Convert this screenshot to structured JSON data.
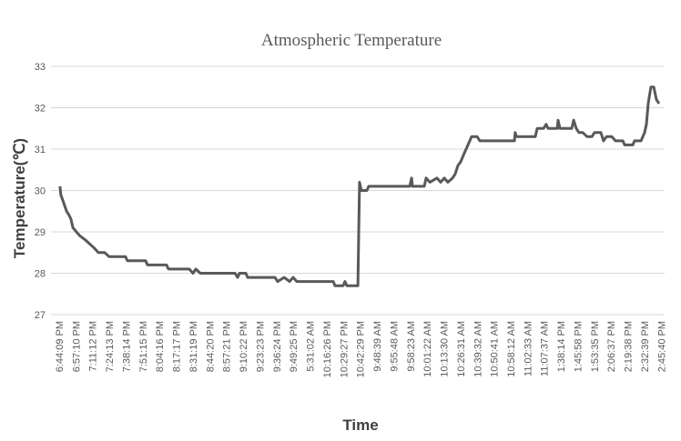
{
  "chart_data": {
    "type": "line",
    "title": "Atmospheric Temperature",
    "xlabel": "Time",
    "ylabel": "Temperature(℃)",
    "ylim": [
      27,
      33
    ],
    "yticks": [
      27,
      28,
      29,
      30,
      31,
      32,
      33
    ],
    "grid": true,
    "legend": "none",
    "series_color": "#595959",
    "categories": [
      "6:44:09 PM",
      "6:57:10 PM",
      "7:11:12 PM",
      "7:24:13 PM",
      "7:38:14 PM",
      "7:51:15 PM",
      "8:04:16 PM",
      "8:17:17 PM",
      "8:31:19 PM",
      "8:44:20 PM",
      "8:57:21 PM",
      "9:10:22 PM",
      "9:23:23 PM",
      "9:36:24 PM",
      "9:49:25 PM",
      "5:31:02 AM",
      "10:16:26 PM",
      "10:29:27 PM",
      "10:42:29 PM",
      "9:48:39 AM",
      "9:55:48 AM",
      "9:58:23 AM",
      "10:01:22 AM",
      "10:13:30 AM",
      "10:26:31 AM",
      "10:39:32 AM",
      "10:50:41 AM",
      "10:58:12 AM",
      "11:02:33 AM",
      "11:07:37 AM",
      "1:38:14 PM",
      "1:45:58 PM",
      "1:53:35 PM",
      "2:06:37 PM",
      "2:19:38 PM",
      "2:32:39 PM",
      "2:45:40 PM"
    ],
    "series": [
      {
        "name": "Temperature",
        "points": [
          [
            0.05,
            30.1
          ],
          [
            0.1,
            29.9
          ],
          [
            0.27,
            29.7
          ],
          [
            0.44,
            29.5
          ],
          [
            0.6,
            29.4
          ],
          [
            0.71,
            29.3
          ],
          [
            0.82,
            29.1
          ],
          [
            1.03,
            29.0
          ],
          [
            1.25,
            28.9
          ],
          [
            1.58,
            28.8
          ],
          [
            1.85,
            28.7
          ],
          [
            2.12,
            28.6
          ],
          [
            2.34,
            28.5
          ],
          [
            2.72,
            28.5
          ],
          [
            2.99,
            28.4
          ],
          [
            3.97,
            28.4
          ],
          [
            4.08,
            28.3
          ],
          [
            5.17,
            28.3
          ],
          [
            5.28,
            28.2
          ],
          [
            6.42,
            28.2
          ],
          [
            6.53,
            28.1
          ],
          [
            7.78,
            28.1
          ],
          [
            8.0,
            28.0
          ],
          [
            8.17,
            28.1
          ],
          [
            8.44,
            28.0
          ],
          [
            10.51,
            28.0
          ],
          [
            10.67,
            27.9
          ],
          [
            10.78,
            28.0
          ],
          [
            11.16,
            28.0
          ],
          [
            11.27,
            27.9
          ],
          [
            12.9,
            27.9
          ],
          [
            13.06,
            27.8
          ],
          [
            13.45,
            27.9
          ],
          [
            13.77,
            27.8
          ],
          [
            13.99,
            27.9
          ],
          [
            14.21,
            27.8
          ],
          [
            16.39,
            27.8
          ],
          [
            16.49,
            27.7
          ],
          [
            16.98,
            27.7
          ],
          [
            17.09,
            27.8
          ],
          [
            17.2,
            27.7
          ],
          [
            17.86,
            27.7
          ],
          [
            17.96,
            30.2
          ],
          [
            18.07,
            30.0
          ],
          [
            18.4,
            30.0
          ],
          [
            18.51,
            30.1
          ],
          [
            20.96,
            30.1
          ],
          [
            21.07,
            30.3
          ],
          [
            21.12,
            30.1
          ],
          [
            21.83,
            30.1
          ],
          [
            21.94,
            30.3
          ],
          [
            22.16,
            30.2
          ],
          [
            22.59,
            30.3
          ],
          [
            22.81,
            30.2
          ],
          [
            23.03,
            30.3
          ],
          [
            23.24,
            30.2
          ],
          [
            23.52,
            30.3
          ],
          [
            23.68,
            30.4
          ],
          [
            23.84,
            30.6
          ],
          [
            24.01,
            30.7
          ],
          [
            24.22,
            30.9
          ],
          [
            24.44,
            31.1
          ],
          [
            24.66,
            31.3
          ],
          [
            24.99,
            31.3
          ],
          [
            25.15,
            31.2
          ],
          [
            27.22,
            31.2
          ],
          [
            27.27,
            31.4
          ],
          [
            27.33,
            31.3
          ],
          [
            28.47,
            31.3
          ],
          [
            28.58,
            31.5
          ],
          [
            28.96,
            31.5
          ],
          [
            29.12,
            31.6
          ],
          [
            29.23,
            31.5
          ],
          [
            29.78,
            31.5
          ],
          [
            29.83,
            31.7
          ],
          [
            29.94,
            31.5
          ],
          [
            30.65,
            31.5
          ],
          [
            30.76,
            31.7
          ],
          [
            30.92,
            31.5
          ],
          [
            31.08,
            31.4
          ],
          [
            31.3,
            31.4
          ],
          [
            31.57,
            31.3
          ],
          [
            31.85,
            31.3
          ],
          [
            32.01,
            31.4
          ],
          [
            32.39,
            31.4
          ],
          [
            32.55,
            31.2
          ],
          [
            32.72,
            31.3
          ],
          [
            33.05,
            31.3
          ],
          [
            33.26,
            31.2
          ],
          [
            33.7,
            31.2
          ],
          [
            33.81,
            31.1
          ],
          [
            34.3,
            31.1
          ],
          [
            34.4,
            31.2
          ],
          [
            34.79,
            31.2
          ],
          [
            35.0,
            31.4
          ],
          [
            35.11,
            31.6
          ],
          [
            35.22,
            32.1
          ],
          [
            35.38,
            32.5
          ],
          [
            35.55,
            32.5
          ],
          [
            35.71,
            32.2
          ],
          [
            35.87,
            32.1
          ]
        ]
      }
    ]
  }
}
